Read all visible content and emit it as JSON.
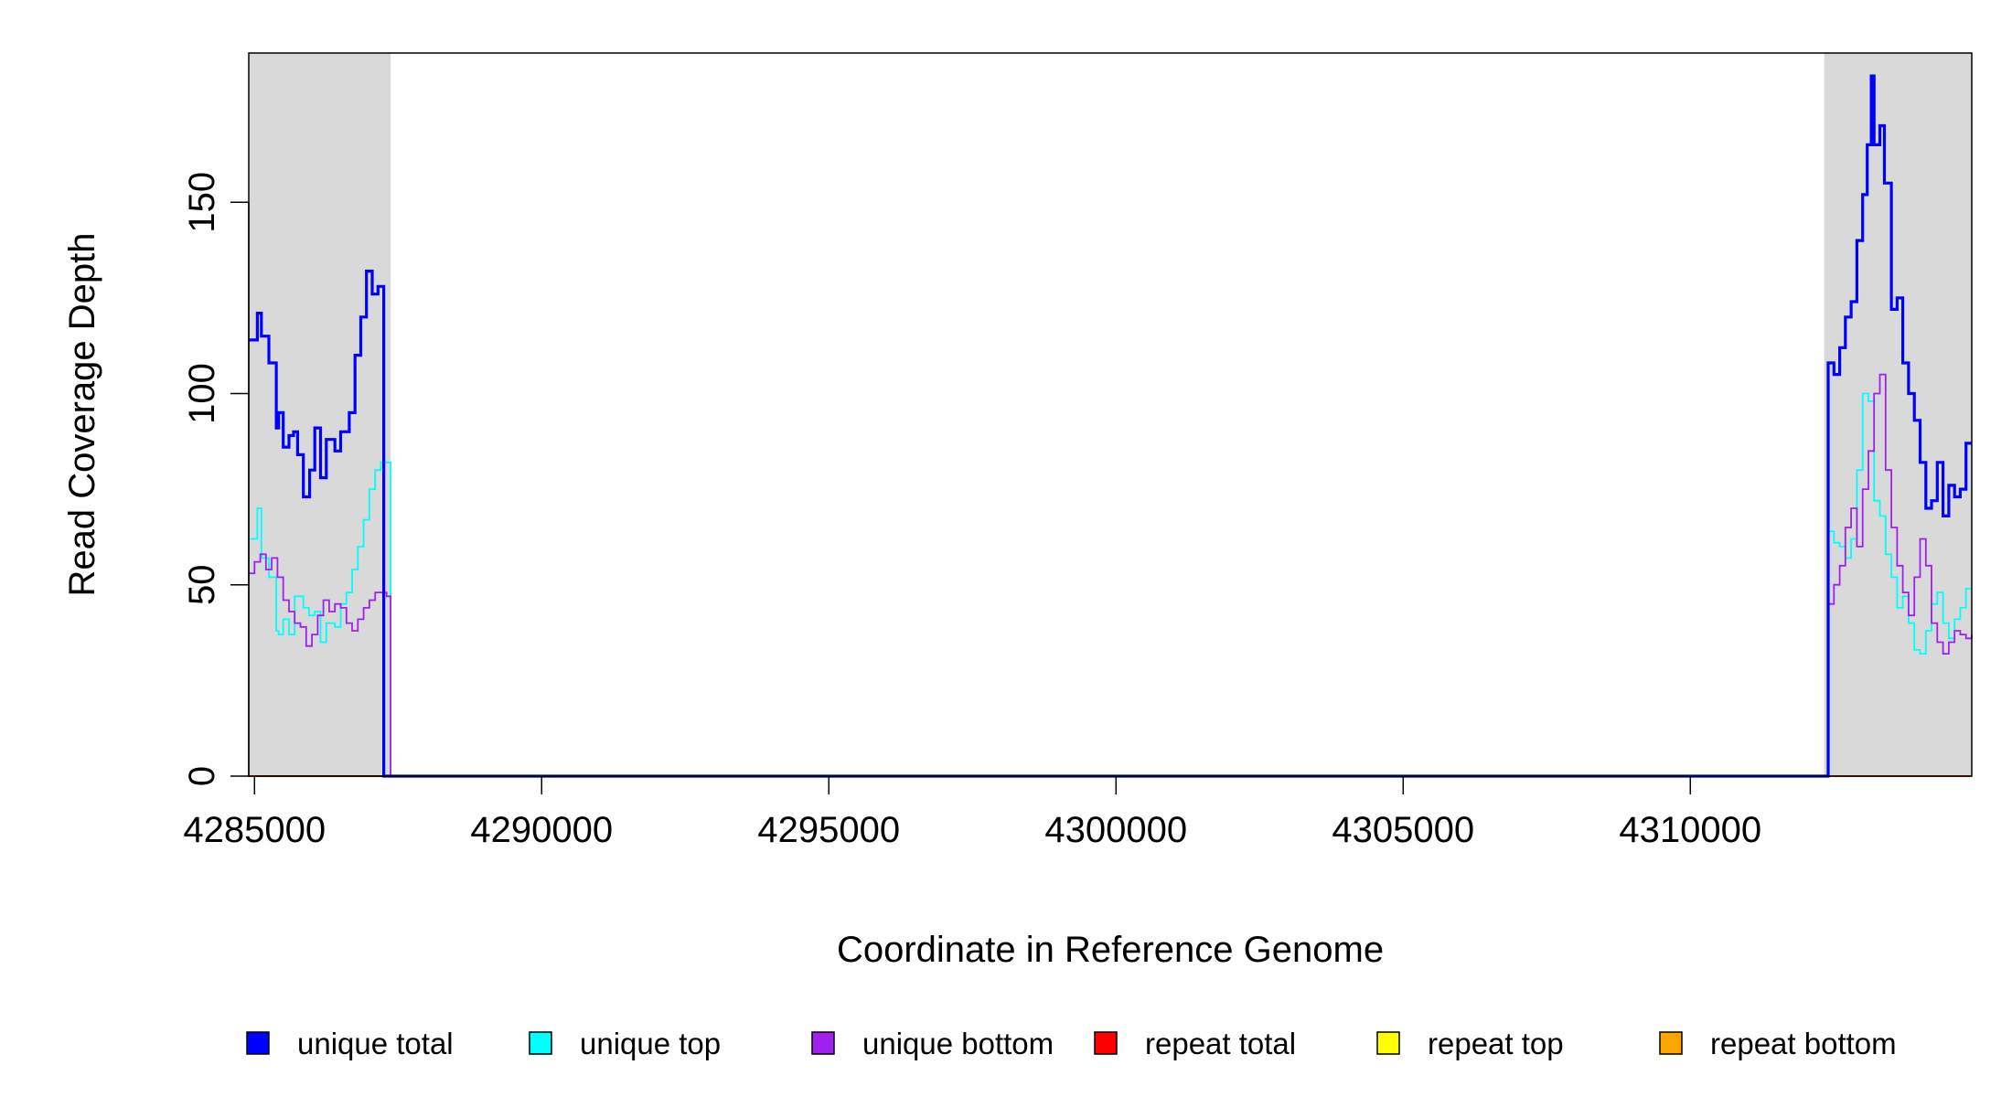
{
  "chart_data": {
    "type": "line",
    "title": "",
    "xlabel": "Coordinate in Reference Genome",
    "ylabel": "Read Coverage Depth",
    "xlim": [
      4284900,
      4314900
    ],
    "ylim": [
      0,
      189
    ],
    "x_ticks": [
      4285000,
      4290000,
      4295000,
      4300000,
      4305000,
      4310000
    ],
    "y_ticks": [
      0,
      50,
      100,
      150
    ],
    "shaded_regions": [
      [
        4284900,
        4287370
      ],
      [
        4312330,
        4314900
      ]
    ],
    "grid": false,
    "legend_position": "bottom",
    "legend": [
      {
        "name": "unique total",
        "color": "#0000ff"
      },
      {
        "name": "unique top",
        "color": "#00ffff"
      },
      {
        "name": "unique bottom",
        "color": "#a020f0"
      },
      {
        "name": "repeat total",
        "color": "#ff0000"
      },
      {
        "name": "repeat top",
        "color": "#ffff00"
      },
      {
        "name": "repeat bottom",
        "color": "#ffa500"
      }
    ],
    "series": [
      {
        "name": "unique total",
        "color": "#0000ff",
        "x": [
          4284900,
          4285050,
          4285120,
          4285250,
          4285380,
          4285420,
          4285500,
          4285600,
          4285680,
          4285750,
          4285850,
          4285960,
          4286050,
          4286150,
          4286250,
          4286400,
          4286500,
          4286650,
          4286750,
          4286850,
          4286950,
          4287050,
          4287150,
          4287250,
          4287370,
          4287420,
          4312330,
          4312400,
          4312500,
          4312600,
          4312700,
          4312800,
          4312900,
          4313000,
          4313080,
          4313150,
          4313200,
          4313300,
          4313380,
          4313500,
          4313600,
          4313700,
          4313800,
          4313900,
          4314000,
          4314100,
          4314200,
          4314300,
          4314400,
          4314500,
          4314600,
          4314700,
          4314800,
          4314900
        ],
        "y": [
          114,
          121,
          115,
          108,
          91,
          95,
          86,
          89,
          90,
          84,
          73,
          80,
          91,
          78,
          88,
          85,
          90,
          95,
          110,
          120,
          132,
          126,
          128,
          0,
          0,
          0,
          0,
          108,
          105,
          112,
          120,
          124,
          140,
          152,
          165,
          183,
          165,
          170,
          155,
          122,
          125,
          108,
          100,
          93,
          82,
          70,
          72,
          82,
          68,
          76,
          73,
          75,
          87,
          87
        ]
      },
      {
        "name": "unique top",
        "color": "#00ffff",
        "x": [
          4284900,
          4285050,
          4285120,
          4285250,
          4285380,
          4285420,
          4285500,
          4285600,
          4285700,
          4285850,
          4285950,
          4286050,
          4286150,
          4286250,
          4286400,
          4286500,
          4286600,
          4286700,
          4286800,
          4286900,
          4287000,
          4287100,
          4287200,
          4287300,
          4287370,
          4287420,
          4312330,
          4312400,
          4312500,
          4312600,
          4312700,
          4312800,
          4312900,
          4313000,
          4313100,
          4313200,
          4313300,
          4313400,
          4313500,
          4313600,
          4313700,
          4313800,
          4313900,
          4314000,
          4314100,
          4314200,
          4314300,
          4314400,
          4314500,
          4314600,
          4314700,
          4314800,
          4314900
        ],
        "y": [
          62,
          70,
          57,
          52,
          38,
          37,
          41,
          37,
          47,
          44,
          42,
          43,
          35,
          40,
          39,
          45,
          48,
          54,
          60,
          67,
          75,
          80,
          82,
          82,
          0,
          0,
          0,
          64,
          61,
          60,
          57,
          62,
          80,
          100,
          98,
          72,
          68,
          58,
          52,
          44,
          47,
          40,
          33,
          32,
          38,
          45,
          48,
          40,
          36,
          41,
          44,
          49,
          49
        ]
      },
      {
        "name": "unique bottom",
        "color": "#a020f0",
        "x": [
          4284900,
          4285000,
          4285100,
          4285200,
          4285300,
          4285400,
          4285500,
          4285600,
          4285700,
          4285800,
          4285900,
          4286000,
          4286100,
          4286200,
          4286300,
          4286400,
          4286500,
          4286600,
          4286700,
          4286800,
          4286900,
          4287000,
          4287100,
          4287200,
          4287300,
          4287370,
          4287420,
          4312330,
          4312400,
          4312500,
          4312600,
          4312700,
          4312800,
          4312900,
          4313000,
          4313100,
          4313200,
          4313300,
          4313400,
          4313500,
          4313600,
          4313700,
          4313800,
          4313900,
          4314000,
          4314100,
          4314200,
          4314300,
          4314400,
          4314500,
          4314600,
          4314700,
          4314800,
          4314900
        ],
        "y": [
          53,
          56,
          58,
          54,
          57,
          52,
          46,
          43,
          40,
          39,
          34,
          37,
          42,
          46,
          43,
          45,
          44,
          40,
          38,
          41,
          44,
          46,
          48,
          48,
          47,
          0,
          0,
          0,
          45,
          50,
          55,
          65,
          70,
          60,
          75,
          85,
          100,
          105,
          80,
          65,
          55,
          48,
          42,
          52,
          62,
          55,
          40,
          35,
          32,
          35,
          38,
          37,
          36,
          37
        ]
      },
      {
        "name": "repeat total",
        "color": "#ff0000",
        "x": [
          4284900,
          4314900
        ],
        "y": [
          0,
          0
        ]
      },
      {
        "name": "repeat top",
        "color": "#ffff00",
        "x": [
          4284900,
          4314900
        ],
        "y": [
          0,
          0
        ]
      },
      {
        "name": "repeat bottom",
        "color": "#ffa500",
        "x": [
          4284900,
          4314900
        ],
        "y": [
          0,
          0
        ]
      }
    ]
  }
}
